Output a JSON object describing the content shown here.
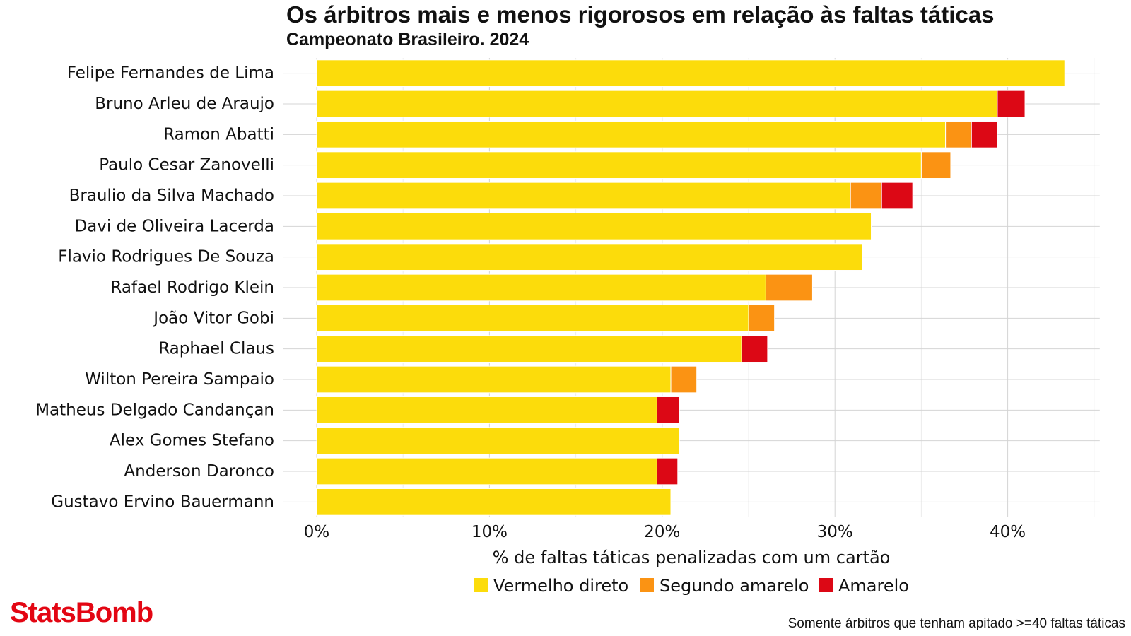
{
  "header": {
    "title": "Os árbitros mais e menos rigorosos em relação às faltas táticas",
    "subtitle": "Campeonato Brasileiro. 2024"
  },
  "brand": {
    "logo": "StatsBomb",
    "color": "#e30613"
  },
  "footnote": "Somente árbitros que tenham apitado >=40 faltas táticas",
  "chart_data": {
    "type": "bar",
    "orientation": "horizontal",
    "stacked": true,
    "xlabel": "% de faltas táticas penalizadas com um cartão",
    "ylabel": "",
    "xlim": [
      0,
      45
    ],
    "xticks": [
      0,
      10,
      20,
      30,
      40
    ],
    "xtick_labels": [
      "0%",
      "10%",
      "20%",
      "30%",
      "40%"
    ],
    "grid": true,
    "legend_position": "bottom",
    "categories": [
      "Felipe Fernandes de Lima",
      "Bruno Arleu de Araujo",
      "Ramon Abatti",
      "Paulo Cesar Zanovelli",
      "Braulio da Silva Machado",
      "Davi de Oliveira Lacerda",
      "Flavio Rodrigues De Souza",
      "Rafael Rodrigo Klein",
      "João Vitor Gobi",
      "Raphael Claus",
      "Wilton Pereira Sampaio",
      "Matheus Delgado Candançan",
      "Alex Gomes Stefano",
      "Anderson Daronco",
      "Gustavo Ervino Bauermann"
    ],
    "series": [
      {
        "name": "Vermelho direto",
        "color": "#fcdc0b",
        "values": [
          43.3,
          39.4,
          36.4,
          35.0,
          30.9,
          32.1,
          31.6,
          26.0,
          25.0,
          24.6,
          20.5,
          19.7,
          21.0,
          19.7,
          20.5
        ]
      },
      {
        "name": "Segundo amarelo",
        "color": "#fb9313",
        "values": [
          0,
          0,
          1.5,
          1.7,
          1.8,
          0,
          0,
          2.7,
          1.5,
          0,
          1.5,
          0,
          0,
          0,
          0
        ]
      },
      {
        "name": "Amarelo",
        "color": "#dc0815",
        "values": [
          0,
          1.6,
          1.5,
          0,
          1.8,
          0,
          0,
          0,
          0,
          1.5,
          0,
          1.3,
          0,
          1.2,
          0
        ]
      }
    ]
  }
}
